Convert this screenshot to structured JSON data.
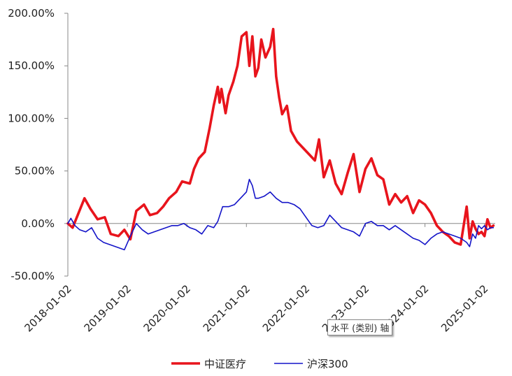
{
  "chart_data": {
    "type": "line",
    "title": "",
    "xlabel": "",
    "ylabel": "",
    "ylim": [
      -50,
      200
    ],
    "y_ticks": [
      "200.00%",
      "150.00%",
      "100.00%",
      "50.00%",
      "0.00%",
      "-50.00%"
    ],
    "y_tick_values": [
      200,
      150,
      100,
      50,
      0,
      -50
    ],
    "xlim": [
      2018.0,
      2025.18
    ],
    "x_tick_labels": [
      "2018-01-02",
      "2019-01-02",
      "2020-01-02",
      "2021-01-02",
      "2022-01-02",
      "2023-01-02",
      "2024-01-02",
      "2025-01-02"
    ],
    "x_tick_values": [
      2018,
      2019,
      2020,
      2021,
      2022,
      2023,
      2024,
      2025
    ],
    "grid": false,
    "legend_position": "bottom",
    "series": [
      {
        "name": "中证医疗",
        "color": "#e8141c",
        "x": [
          2018.0,
          2018.08,
          2018.18,
          2018.28,
          2018.38,
          2018.5,
          2018.62,
          2018.72,
          2018.85,
          2018.95,
          2019.05,
          2019.15,
          2019.28,
          2019.38,
          2019.5,
          2019.6,
          2019.7,
          2019.82,
          2019.92,
          2020.05,
          2020.12,
          2020.2,
          2020.3,
          2020.38,
          2020.45,
          2020.52,
          2020.55,
          2020.58,
          2020.65,
          2020.7,
          2020.78,
          2020.85,
          2020.92,
          2021.0,
          2021.05,
          2021.1,
          2021.15,
          2021.2,
          2021.25,
          2021.32,
          2021.4,
          2021.45,
          2021.5,
          2021.55,
          2021.6,
          2021.68,
          2021.75,
          2021.85,
          2021.95,
          2022.05,
          2022.15,
          2022.22,
          2022.3,
          2022.4,
          2022.5,
          2022.6,
          2022.7,
          2022.8,
          2022.9,
          2023.0,
          2023.1,
          2023.2,
          2023.3,
          2023.4,
          2023.5,
          2023.6,
          2023.7,
          2023.8,
          2023.9,
          2024.0,
          2024.1,
          2024.2,
          2024.3,
          2024.4,
          2024.5,
          2024.6,
          2024.7,
          2024.75,
          2024.8,
          2024.85,
          2024.9,
          2024.95,
          2025.0,
          2025.05,
          2025.1,
          2025.15
        ],
        "values": [
          0,
          -4,
          10,
          24,
          14,
          4,
          6,
          -10,
          -12,
          -6,
          -15,
          12,
          18,
          8,
          10,
          16,
          24,
          30,
          40,
          38,
          52,
          62,
          68,
          90,
          112,
          130,
          115,
          128,
          105,
          122,
          135,
          150,
          178,
          182,
          150,
          178,
          140,
          148,
          175,
          158,
          168,
          185,
          140,
          120,
          104,
          112,
          88,
          78,
          72,
          66,
          60,
          80,
          44,
          60,
          38,
          28,
          48,
          66,
          30,
          52,
          62,
          46,
          42,
          18,
          28,
          20,
          26,
          10,
          22,
          18,
          10,
          -2,
          -8,
          -12,
          -18,
          -20,
          16,
          -14,
          2,
          -5,
          -10,
          -8,
          -12,
          4,
          -4,
          -2
        ]
      },
      {
        "name": "沪深300",
        "color": "#1414c8",
        "x": [
          2018.0,
          2018.05,
          2018.12,
          2018.2,
          2018.3,
          2018.4,
          2018.5,
          2018.6,
          2018.7,
          2018.8,
          2018.95,
          2019.05,
          2019.15,
          2019.25,
          2019.35,
          2019.45,
          2019.55,
          2019.65,
          2019.75,
          2019.85,
          2019.95,
          2020.05,
          2020.15,
          2020.25,
          2020.35,
          2020.45,
          2020.52,
          2020.6,
          2020.7,
          2020.8,
          2020.9,
          2021.0,
          2021.05,
          2021.1,
          2021.15,
          2021.2,
          2021.3,
          2021.4,
          2021.5,
          2021.6,
          2021.7,
          2021.8,
          2021.9,
          2022.0,
          2022.1,
          2022.2,
          2022.3,
          2022.4,
          2022.5,
          2022.6,
          2022.7,
          2022.8,
          2022.9,
          2023.0,
          2023.1,
          2023.2,
          2023.3,
          2023.4,
          2023.5,
          2023.6,
          2023.7,
          2023.8,
          2023.9,
          2024.0,
          2024.1,
          2024.2,
          2024.3,
          2024.4,
          2024.5,
          2024.6,
          2024.7,
          2024.75,
          2024.8,
          2024.85,
          2024.9,
          2024.95,
          2025.0,
          2025.05,
          2025.1,
          2025.15
        ],
        "values": [
          0,
          5,
          -2,
          -6,
          -8,
          -4,
          -14,
          -18,
          -20,
          -22,
          -25,
          -12,
          0,
          -6,
          -10,
          -8,
          -6,
          -4,
          -2,
          -2,
          0,
          -4,
          -6,
          -10,
          -2,
          -4,
          2,
          16,
          16,
          18,
          24,
          30,
          42,
          36,
          24,
          24,
          26,
          30,
          24,
          20,
          20,
          18,
          14,
          6,
          -2,
          -4,
          -2,
          8,
          2,
          -4,
          -6,
          -8,
          -12,
          0,
          2,
          -2,
          -2,
          -6,
          -2,
          -6,
          -10,
          -14,
          -16,
          -20,
          -14,
          -10,
          -8,
          -10,
          -12,
          -14,
          -18,
          -22,
          -10,
          -14,
          -2,
          -5,
          -2,
          -6,
          -4,
          -4
        ]
      }
    ],
    "tooltip": "水平 (类别) 轴"
  }
}
